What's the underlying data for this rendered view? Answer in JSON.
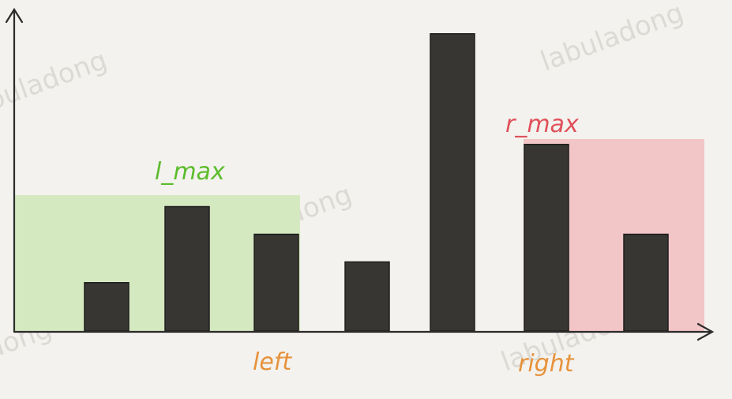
{
  "labels": {
    "l_max": "l_max",
    "r_max": "r_max",
    "left": "left",
    "right": "right"
  },
  "watermark": "labuladong",
  "colors": {
    "background": "#f3f2ee",
    "bar": "#373632",
    "axis": "#2b2b2b",
    "l_max_region": "#d5e9c1",
    "r_max_region": "#f2c5c7",
    "l_max_label": "#5cbc2c",
    "r_max_label": "#e0505a",
    "pointer_label": "#e6923c",
    "watermark": "#d8d6d0"
  },
  "chart_data": {
    "type": "bar",
    "bar_heights": [
      3.5,
      9,
      7,
      5,
      21.5,
      13.5,
      7
    ],
    "l_max_level": 10,
    "r_max_level": 14.5,
    "pointers": {
      "left_index": 2,
      "right_index": 5
    }
  }
}
